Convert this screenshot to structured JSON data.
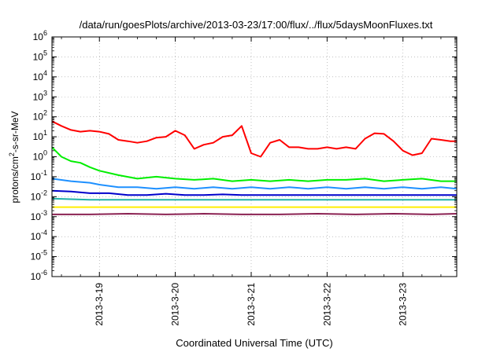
{
  "chart_data": {
    "type": "line",
    "title": "/data/run/goesPlots/archive/2013-03-23/17:00/flux/../flux/5daysMoonFluxes.txt",
    "xlabel": "Coordinated Universal Time (UTC)",
    "ylabel": "protons/cm²-s-sr-MeV",
    "yscale": "log",
    "ylim": [
      1e-06,
      1000000
    ],
    "xlim": [
      "2013-03-18 09:00",
      "2013-03-23 17:00"
    ],
    "grid": "dotted",
    "legend": "none",
    "x_ticks": [
      {
        "date": "2013-03-19 00:00",
        "label": "2013-3-19"
      },
      {
        "date": "2013-03-20 00:00",
        "label": "2013-3-20"
      },
      {
        "date": "2013-03-21 00:00",
        "label": "2013-3-21"
      },
      {
        "date": "2013-03-22 00:00",
        "label": "2013-3-22"
      },
      {
        "date": "2013-03-23 00:00",
        "label": "2013-3-23"
      }
    ],
    "y_ticks": [
      {
        "value": 1e-06,
        "base": "10",
        "exp": "-6"
      },
      {
        "value": 1e-05,
        "base": "10",
        "exp": "-5"
      },
      {
        "value": 0.0001,
        "base": "10",
        "exp": "-4"
      },
      {
        "value": 0.001,
        "base": "10",
        "exp": "-3"
      },
      {
        "value": 0.01,
        "base": "10",
        "exp": "-2"
      },
      {
        "value": 0.1,
        "base": "10",
        "exp": "-1"
      },
      {
        "value": 1,
        "base": "10",
        "exp": "0"
      },
      {
        "value": 10,
        "base": "10",
        "exp": "1"
      },
      {
        "value": 100,
        "base": "10",
        "exp": "2"
      },
      {
        "value": 1000,
        "base": "10",
        "exp": "3"
      },
      {
        "value": 10000,
        "base": "10",
        "exp": "4"
      },
      {
        "value": 100000,
        "base": "10",
        "exp": "5"
      },
      {
        "value": 1000000,
        "base": "10",
        "exp": "6"
      }
    ],
    "series": [
      {
        "color": "#ff0000",
        "points": [
          [
            "2013-03-18 09:00",
            60
          ],
          [
            "2013-03-18 12:00",
            35
          ],
          [
            "2013-03-18 15:00",
            22
          ],
          [
            "2013-03-18 18:00",
            18
          ],
          [
            "2013-03-18 21:00",
            20
          ],
          [
            "2013-03-19 00:00",
            18
          ],
          [
            "2013-03-19 03:00",
            14
          ],
          [
            "2013-03-19 06:00",
            7
          ],
          [
            "2013-03-19 09:00",
            6
          ],
          [
            "2013-03-19 12:00",
            5
          ],
          [
            "2013-03-19 15:00",
            6
          ],
          [
            "2013-03-19 18:00",
            9
          ],
          [
            "2013-03-19 21:00",
            10
          ],
          [
            "2013-03-20 00:00",
            20
          ],
          [
            "2013-03-20 03:00",
            12
          ],
          [
            "2013-03-20 06:00",
            2.5
          ],
          [
            "2013-03-20 09:00",
            4
          ],
          [
            "2013-03-20 12:00",
            5
          ],
          [
            "2013-03-20 15:00",
            10
          ],
          [
            "2013-03-20 18:00",
            12
          ],
          [
            "2013-03-20 21:00",
            35
          ],
          [
            "2013-03-21 00:00",
            1.5
          ],
          [
            "2013-03-21 03:00",
            1
          ],
          [
            "2013-03-21 06:00",
            5
          ],
          [
            "2013-03-21 09:00",
            7
          ],
          [
            "2013-03-21 12:00",
            3
          ],
          [
            "2013-03-21 15:00",
            3
          ],
          [
            "2013-03-21 18:00",
            2.5
          ],
          [
            "2013-03-21 21:00",
            2.5
          ],
          [
            "2013-03-22 00:00",
            3
          ],
          [
            "2013-03-22 03:00",
            2.5
          ],
          [
            "2013-03-22 06:00",
            3
          ],
          [
            "2013-03-22 09:00",
            2.5
          ],
          [
            "2013-03-22 12:00",
            8
          ],
          [
            "2013-03-22 15:00",
            15
          ],
          [
            "2013-03-22 18:00",
            14
          ],
          [
            "2013-03-22 21:00",
            6
          ],
          [
            "2013-03-23 00:00",
            2
          ],
          [
            "2013-03-23 03:00",
            1.2
          ],
          [
            "2013-03-23 06:00",
            1.5
          ],
          [
            "2013-03-23 09:00",
            8
          ],
          [
            "2013-03-23 12:00",
            7
          ],
          [
            "2013-03-23 15:00",
            6
          ],
          [
            "2013-03-23 17:00",
            6
          ]
        ]
      },
      {
        "color": "#00ee00",
        "points": [
          [
            "2013-03-18 09:00",
            3
          ],
          [
            "2013-03-18 12:00",
            1
          ],
          [
            "2013-03-18 15:00",
            0.6
          ],
          [
            "2013-03-18 18:00",
            0.5
          ],
          [
            "2013-03-18 21:00",
            0.3
          ],
          [
            "2013-03-19 00:00",
            0.2
          ],
          [
            "2013-03-19 06:00",
            0.12
          ],
          [
            "2013-03-19 12:00",
            0.08
          ],
          [
            "2013-03-19 18:00",
            0.1
          ],
          [
            "2013-03-20 00:00",
            0.08
          ],
          [
            "2013-03-20 06:00",
            0.07
          ],
          [
            "2013-03-20 12:00",
            0.08
          ],
          [
            "2013-03-20 18:00",
            0.06
          ],
          [
            "2013-03-21 00:00",
            0.07
          ],
          [
            "2013-03-21 06:00",
            0.06
          ],
          [
            "2013-03-21 12:00",
            0.07
          ],
          [
            "2013-03-21 18:00",
            0.06
          ],
          [
            "2013-03-22 00:00",
            0.07
          ],
          [
            "2013-03-22 06:00",
            0.07
          ],
          [
            "2013-03-22 12:00",
            0.08
          ],
          [
            "2013-03-22 18:00",
            0.06
          ],
          [
            "2013-03-23 00:00",
            0.07
          ],
          [
            "2013-03-23 06:00",
            0.08
          ],
          [
            "2013-03-23 12:00",
            0.06
          ],
          [
            "2013-03-23 17:00",
            0.06
          ]
        ]
      },
      {
        "color": "#1e90ff",
        "points": [
          [
            "2013-03-18 09:00",
            0.08
          ],
          [
            "2013-03-18 15:00",
            0.06
          ],
          [
            "2013-03-18 21:00",
            0.05
          ],
          [
            "2013-03-19 00:00",
            0.04
          ],
          [
            "2013-03-19 06:00",
            0.03
          ],
          [
            "2013-03-19 12:00",
            0.03
          ],
          [
            "2013-03-19 18:00",
            0.025
          ],
          [
            "2013-03-20 00:00",
            0.03
          ],
          [
            "2013-03-20 06:00",
            0.025
          ],
          [
            "2013-03-20 12:00",
            0.03
          ],
          [
            "2013-03-20 18:00",
            0.025
          ],
          [
            "2013-03-21 00:00",
            0.03
          ],
          [
            "2013-03-21 06:00",
            0.025
          ],
          [
            "2013-03-21 12:00",
            0.03
          ],
          [
            "2013-03-21 18:00",
            0.025
          ],
          [
            "2013-03-22 00:00",
            0.03
          ],
          [
            "2013-03-22 06:00",
            0.025
          ],
          [
            "2013-03-22 12:00",
            0.03
          ],
          [
            "2013-03-22 18:00",
            0.025
          ],
          [
            "2013-03-23 00:00",
            0.03
          ],
          [
            "2013-03-23 06:00",
            0.025
          ],
          [
            "2013-03-23 12:00",
            0.03
          ],
          [
            "2013-03-23 17:00",
            0.025
          ]
        ]
      },
      {
        "color": "#0000cc",
        "points": [
          [
            "2013-03-18 09:00",
            0.02
          ],
          [
            "2013-03-18 15:00",
            0.018
          ],
          [
            "2013-03-18 21:00",
            0.015
          ],
          [
            "2013-03-19 03:00",
            0.015
          ],
          [
            "2013-03-19 09:00",
            0.012
          ],
          [
            "2013-03-19 15:00",
            0.012
          ],
          [
            "2013-03-19 21:00",
            0.014
          ],
          [
            "2013-03-20 03:00",
            0.012
          ],
          [
            "2013-03-20 09:00",
            0.012
          ],
          [
            "2013-03-20 15:00",
            0.013
          ],
          [
            "2013-03-20 21:00",
            0.012
          ],
          [
            "2013-03-21 03:00",
            0.012
          ],
          [
            "2013-03-21 09:00",
            0.012
          ],
          [
            "2013-03-21 15:00",
            0.012
          ],
          [
            "2013-03-21 21:00",
            0.012
          ],
          [
            "2013-03-22 03:00",
            0.012
          ],
          [
            "2013-03-22 09:00",
            0.012
          ],
          [
            "2013-03-22 15:00",
            0.012
          ],
          [
            "2013-03-22 21:00",
            0.012
          ],
          [
            "2013-03-23 03:00",
            0.012
          ],
          [
            "2013-03-23 09:00",
            0.012
          ],
          [
            "2013-03-23 17:00",
            0.012
          ]
        ]
      },
      {
        "color": "#20b2aa",
        "points": [
          [
            "2013-03-18 09:00",
            0.008
          ],
          [
            "2013-03-18 21:00",
            0.007
          ],
          [
            "2013-03-19 09:00",
            0.007
          ],
          [
            "2013-03-19 21:00",
            0.007
          ],
          [
            "2013-03-20 09:00",
            0.007
          ],
          [
            "2013-03-20 21:00",
            0.007
          ],
          [
            "2013-03-21 09:00",
            0.007
          ],
          [
            "2013-03-21 21:00",
            0.007
          ],
          [
            "2013-03-22 09:00",
            0.007
          ],
          [
            "2013-03-22 21:00",
            0.007
          ],
          [
            "2013-03-23 09:00",
            0.007
          ],
          [
            "2013-03-23 17:00",
            0.007
          ]
        ]
      },
      {
        "color": "#ffee00",
        "points": [
          [
            "2013-03-18 09:00",
            0.003
          ],
          [
            "2013-03-19 09:00",
            0.003
          ],
          [
            "2013-03-20 09:00",
            0.003
          ],
          [
            "2013-03-21 09:00",
            0.003
          ],
          [
            "2013-03-22 09:00",
            0.003
          ],
          [
            "2013-03-23 09:00",
            0.003
          ],
          [
            "2013-03-23 17:00",
            0.003
          ]
        ]
      },
      {
        "color": "#8b2252",
        "points": [
          [
            "2013-03-18 09:00",
            0.0013
          ],
          [
            "2013-03-18 21:00",
            0.0013
          ],
          [
            "2013-03-19 09:00",
            0.0014
          ],
          [
            "2013-03-19 21:00",
            0.0013
          ],
          [
            "2013-03-20 09:00",
            0.0014
          ],
          [
            "2013-03-20 21:00",
            0.0013
          ],
          [
            "2013-03-21 09:00",
            0.0013
          ],
          [
            "2013-03-21 21:00",
            0.0014
          ],
          [
            "2013-03-22 09:00",
            0.0013
          ],
          [
            "2013-03-22 21:00",
            0.0014
          ],
          [
            "2013-03-23 09:00",
            0.0013
          ],
          [
            "2013-03-23 17:00",
            0.0014
          ]
        ]
      }
    ]
  }
}
